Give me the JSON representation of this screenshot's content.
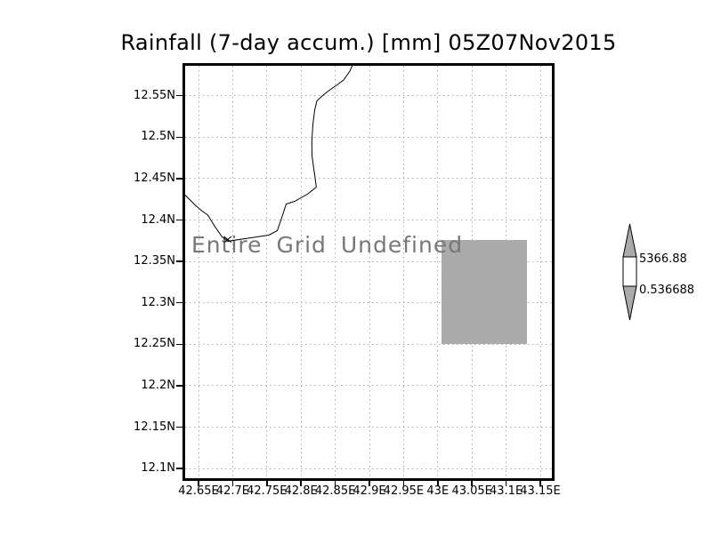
{
  "title": "Rainfall (7-day accum.) [mm] 05Z07Nov2015",
  "map": {
    "message": "Entire Grid Undefined"
  },
  "axes": {
    "y_ticks": [
      "12.55N",
      "12.5N",
      "12.45N",
      "12.4N",
      "12.35N",
      "12.3N",
      "12.25N",
      "12.2N",
      "12.15N",
      "12.1N"
    ],
    "x_ticks": [
      "42.65E",
      "42.7E",
      "42.75E",
      "42.8E",
      "42.85E",
      "42.9E",
      "42.95E",
      "43E",
      "43.05E",
      "43.1E",
      "43.15E"
    ]
  },
  "colorbar": {
    "max_label": "5366.88",
    "min_label": "0.536688",
    "arrow_fill": "#aaaaaa",
    "box_fill": "#ffffff"
  },
  "colors": {
    "grid": "#aaaaaa",
    "undefined_region": "#ababab",
    "message_text": "#787878",
    "coastline": "#000000",
    "frame": "#000000"
  },
  "chart_data": {
    "type": "heatmap",
    "title": "Rainfall (7-day accum.) [mm] 05Z07Nov2015",
    "annotation": "Entire Grid Undefined",
    "x_tick_labels": [
      "42.65E",
      "42.7E",
      "42.75E",
      "42.8E",
      "42.85E",
      "42.9E",
      "42.95E",
      "43E",
      "43.05E",
      "43.1E",
      "43.15E"
    ],
    "y_tick_labels": [
      "12.55N",
      "12.5N",
      "12.45N",
      "12.4N",
      "12.35N",
      "12.3N",
      "12.25N",
      "12.2N",
      "12.15N",
      "12.1N"
    ],
    "grid": true,
    "legend_position": "right",
    "colorbar_min": 0.536688,
    "colorbar_max": 5366.88,
    "values": [],
    "shaded_region": {
      "note": "solid gray block of undefined/masked data",
      "x_extent": [
        "43E",
        "43.13E"
      ],
      "y_extent": [
        "12.25N",
        "12.37N"
      ],
      "color": "#ababab"
    }
  }
}
